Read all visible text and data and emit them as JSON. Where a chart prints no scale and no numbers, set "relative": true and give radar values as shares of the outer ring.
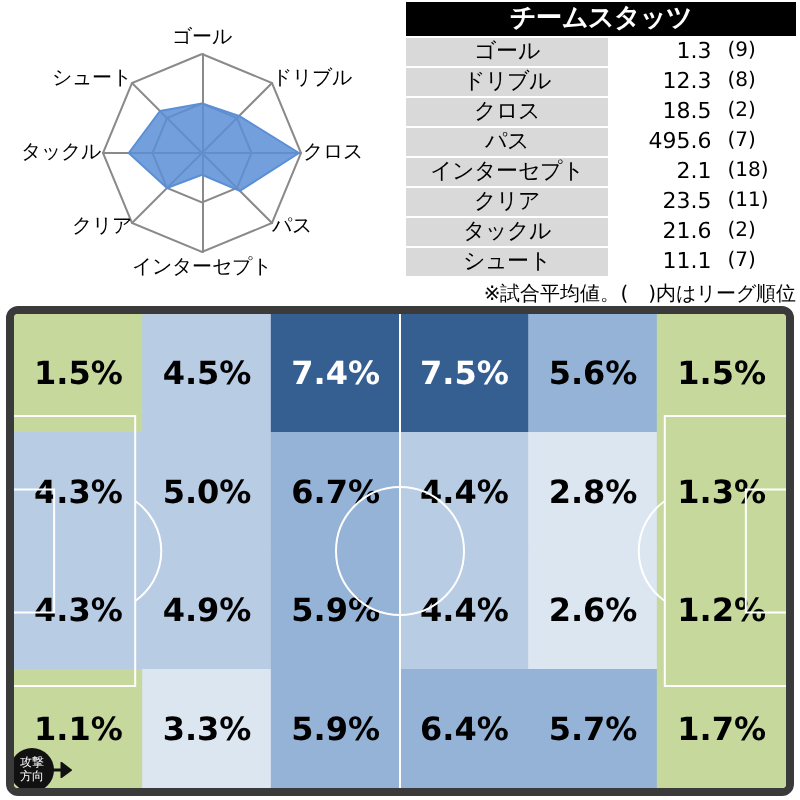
{
  "chart_data": [
    {
      "type": "radar",
      "categories": [
        "ゴール",
        "ドリブル",
        "クロス",
        "パス",
        "インターセプト",
        "クリア",
        "タックル",
        "シュート"
      ],
      "relative": true,
      "grid": true,
      "series": [
        {
          "color": "#5b8fd6",
          "values": [
            0.5,
            0.53,
            0.98,
            0.54,
            0.22,
            0.5,
            0.74,
            0.6
          ]
        }
      ]
    },
    {
      "type": "other",
      "title": "チームスタッツ",
      "categories": [
        "ゴール",
        "ドリブル",
        "クロス",
        "パス",
        "インターセプト",
        "クリア",
        "タックル",
        "シュート"
      ],
      "data_labels": true,
      "series": [
        {
          "values": [
            1.3,
            12.3,
            18.5,
            495.6,
            2.1,
            23.5,
            21.6,
            11.1
          ]
        },
        {
          "values": [
            9,
            8,
            2,
            7,
            18,
            11,
            2,
            7
          ],
          "value_labels": [
            "(9)",
            "(8)",
            "(2)",
            "(7)",
            "(18)",
            "(11)",
            "(2)",
            "(7)"
          ]
        }
      ],
      "annotations": [
        "※試合平均値。(　)内はリーグ順位"
      ]
    },
    {
      "type": "heatmap",
      "categories": [
        null,
        null,
        null,
        null,
        null,
        null
      ],
      "y_categories": [
        null,
        null,
        null,
        null
      ],
      "tick_labels": false,
      "cells": [
        [
          1.5,
          4.5,
          7.4,
          7.5,
          5.6,
          1.5
        ],
        [
          4.3,
          5.0,
          6.7,
          4.4,
          2.8,
          1.3
        ],
        [
          4.3,
          4.9,
          5.9,
          4.4,
          2.6,
          1.2
        ],
        [
          1.1,
          3.3,
          5.9,
          6.4,
          5.7,
          1.7
        ]
      ],
      "cell_labels": [
        [
          "1.5%",
          "4.5%",
          "7.4%",
          "7.5%",
          "5.6%",
          "1.5%"
        ],
        [
          "4.3%",
          "5.0%",
          "6.7%",
          "4.4%",
          "2.8%",
          "1.3%"
        ],
        [
          "4.3%",
          "4.9%",
          "5.9%",
          "4.4%",
          "2.6%",
          "1.2%"
        ],
        [
          "1.1%",
          "3.3%",
          "5.9%",
          "6.4%",
          "5.7%",
          "1.7%"
        ]
      ],
      "colors": [
        [
          "#c6d89c",
          "#b8cce4",
          "#365f91",
          "#365f91",
          "#95b3d7",
          "#c6d89c"
        ],
        [
          "#b8cce4",
          "#b8cce4",
          "#95b3d7",
          "#b8cce4",
          "#dce6f1",
          "#c6d89c"
        ],
        [
          "#b8cce4",
          "#b8cce4",
          "#95b3d7",
          "#b8cce4",
          "#dce6f1",
          "#c6d89c"
        ],
        [
          "#c6d89c",
          "#dce6f1",
          "#95b3d7",
          "#95b3d7",
          "#95b3d7",
          "#c6d89c"
        ]
      ],
      "annotations": [
        "攻撃方向"
      ]
    }
  ]
}
